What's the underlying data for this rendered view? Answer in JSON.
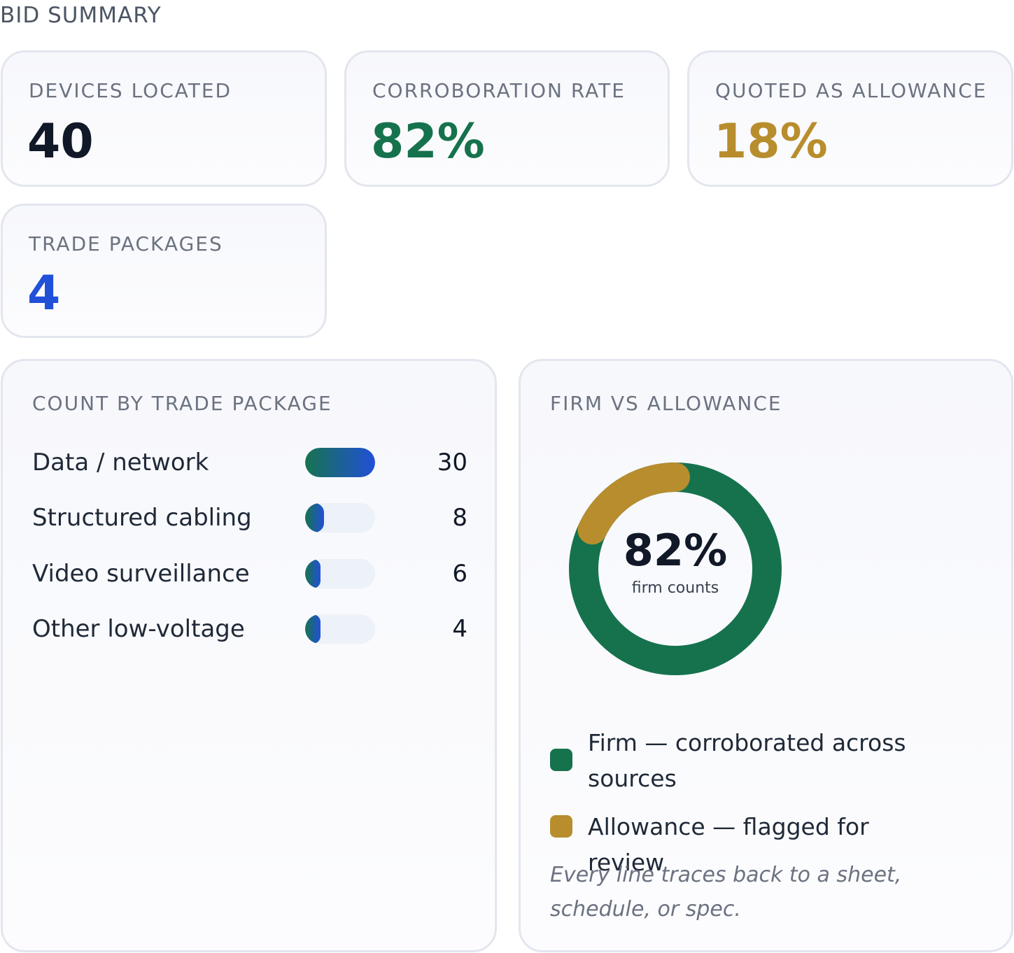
{
  "page": {
    "heading": "BID SUMMARY"
  },
  "stats": [
    {
      "label": "DEVICES LOCATED",
      "value": "40",
      "color": "#111827"
    },
    {
      "label": "CORROBORATION RATE",
      "value": "82%",
      "color": "#16724d"
    },
    {
      "label": "QUOTED AS ALLOWANCE",
      "value": "18%",
      "color": "#b88d2d"
    },
    {
      "label": "TRADE PACKAGES",
      "value": "4",
      "color": "#2150d8"
    }
  ],
  "trade_panel": {
    "title": "COUNT BY TRADE PACKAGE",
    "rows": [
      {
        "label": "Data / network",
        "value": "30"
      },
      {
        "label": "Structured cabling",
        "value": "8"
      },
      {
        "label": "Video surveillance",
        "value": "6"
      },
      {
        "label": "Other low-voltage",
        "value": "4"
      }
    ]
  },
  "firm_panel": {
    "title": "FIRM VS ALLOWANCE",
    "center_value": "82%",
    "center_caption": "firm counts",
    "legend": [
      {
        "label": "Firm — corroborated across sources",
        "color": "#16724d"
      },
      {
        "label": "Allowance — flagged for review",
        "color": "#b88d2d"
      }
    ],
    "footnote": "Every line traces back to a sheet, schedule, or spec."
  },
  "chart_data": [
    {
      "type": "bar",
      "title": "COUNT BY TRADE PACKAGE",
      "categories": [
        "Data / network",
        "Structured cabling",
        "Video surveillance",
        "Other low-voltage"
      ],
      "values": [
        30,
        8,
        6,
        4
      ]
    },
    {
      "type": "pie",
      "title": "FIRM VS ALLOWANCE",
      "labels": [
        "Firm — corroborated across sources",
        "Allowance — flagged for review"
      ],
      "values": [
        82,
        18
      ],
      "colors": [
        "#16724d",
        "#b88d2d"
      ]
    }
  ]
}
